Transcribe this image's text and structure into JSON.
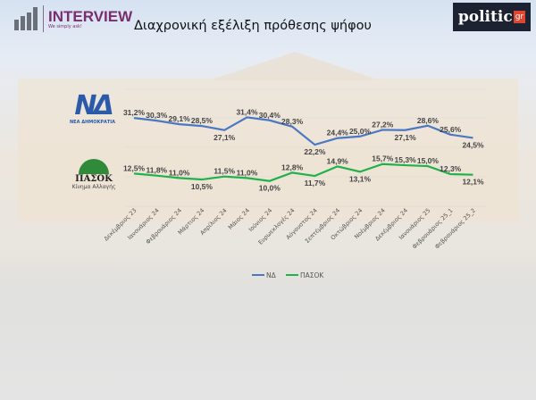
{
  "header": {
    "brand": "INTERVIEW",
    "tagline": "We simply ask!",
    "title": "Διαχρονική εξέλιξη πρόθεσης ψήφου",
    "politic": "politic",
    "politic_gr": "gr"
  },
  "logos": {
    "nd": "ΝΔ",
    "nd_sub": "ΝΕΑ ΔΗΜΟΚΡΑΤΙΑ",
    "pasok": "ΠΑΣΟΚ",
    "pasok_sub": "Κίνημα Αλλαγής"
  },
  "chart_data": {
    "type": "line",
    "title": "Διαχρονική εξέλιξη πρόθεσης ψήφου",
    "categories": [
      "Δεκέμβριος 23",
      "Ιανουάριος 24",
      "Φεβρουάριος 24",
      "Μάρτιος 24",
      "Απρίλιος 24",
      "Μάιος 24",
      "Ιούνιος 24",
      "Ευρωεκλογές 24",
      "Αύγουστος 24",
      "Σεπτέμβριος 24",
      "Οκτώβριος 24",
      "Νοέμβριος 24",
      "Δεκέμβριος 24",
      "Ιανουάριος 25",
      "Φεβρουάριος 25_1",
      "Φεβρουάριος 25_2"
    ],
    "series": [
      {
        "name": "ΝΔ",
        "color": "#4a78c4",
        "values": [
          31.2,
          30.3,
          29.1,
          28.5,
          27.1,
          31.4,
          30.4,
          28.3,
          22.2,
          24.4,
          25.0,
          27.2,
          27.1,
          28.6,
          25.6,
          24.5
        ]
      },
      {
        "name": "ΠΑΣΟΚ",
        "color": "#1fb24a",
        "values": [
          12.5,
          11.8,
          11.0,
          10.5,
          11.5,
          11.0,
          10.0,
          12.8,
          11.7,
          14.9,
          13.1,
          15.7,
          15.3,
          15.0,
          12.3,
          12.1
        ]
      }
    ],
    "legend": "bottom",
    "grid": true,
    "unit": "%"
  }
}
